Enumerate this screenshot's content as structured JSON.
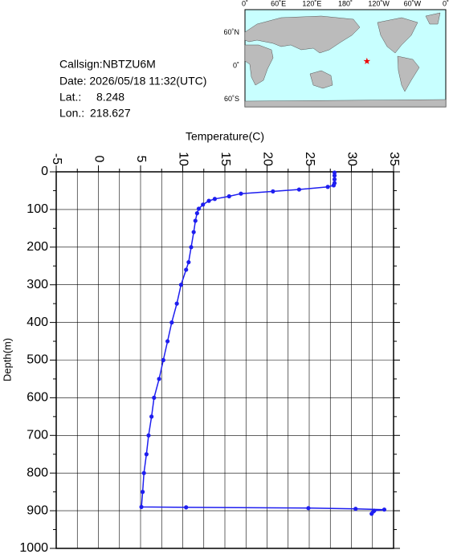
{
  "info": {
    "callsign": "Callsign:NBTZU6M",
    "date": "Date:  2026/05/18 11:32(UTC)",
    "lat_label": "Lat.:",
    "lat": 8.248,
    "lon_label": "Lon.:",
    "lon": 218.627
  },
  "map": {
    "lon_ticks": [
      {
        "value": 0,
        "label": "0˚"
      },
      {
        "value": 60,
        "label": "60˚E"
      },
      {
        "value": 120,
        "label": "120˚E"
      },
      {
        "value": 180,
        "label": "180˚"
      },
      {
        "value": 240,
        "label": "120˚W"
      },
      {
        "value": 300,
        "label": "60˚W"
      },
      {
        "value": 360,
        "label": "0˚"
      }
    ],
    "lat_ticks": [
      {
        "value": 60,
        "label": "60˚N"
      },
      {
        "value": 0,
        "label": "0˚"
      },
      {
        "value": -60,
        "label": "60˚S"
      }
    ]
  },
  "chart_data": {
    "type": "line",
    "x_label": "Temperature(C)",
    "y_label": "Depth(m)",
    "xlim": [
      -5,
      35
    ],
    "xticks": [
      -5,
      0,
      5,
      10,
      15,
      20,
      25,
      30,
      35
    ],
    "ylim": [
      0,
      1000
    ],
    "yticks": [
      0,
      100,
      200,
      300,
      400,
      500,
      600,
      700,
      800,
      900,
      1000
    ],
    "y_inverted": true,
    "grid": true,
    "series": [
      {
        "color": "#1e1ef0",
        "x": [
          28.0,
          28.0,
          28.0,
          28.0,
          27.9,
          27.2,
          23.8,
          20.7,
          16.9,
          15.5,
          13.8,
          13.1,
          12.4,
          11.9,
          11.7,
          11.5,
          11.3,
          11.0,
          10.7,
          10.4,
          9.8,
          9.3,
          8.7,
          8.2,
          7.7,
          7.2,
          6.6,
          6.3,
          5.95,
          5.7,
          5.4,
          5.25,
          5.1,
          10.4,
          24.9,
          30.5,
          33.9,
          32.7,
          32.4,
          32.6
        ],
        "values": [
          2,
          10,
          20,
          30,
          36,
          40,
          47,
          52,
          58,
          65,
          72,
          77,
          87,
          98,
          110,
          130,
          160,
          200,
          240,
          260,
          300,
          350,
          400,
          450,
          500,
          550,
          600,
          650,
          700,
          750,
          800,
          850,
          890,
          891,
          893,
          895,
          897,
          900,
          908,
          902
        ]
      }
    ]
  }
}
